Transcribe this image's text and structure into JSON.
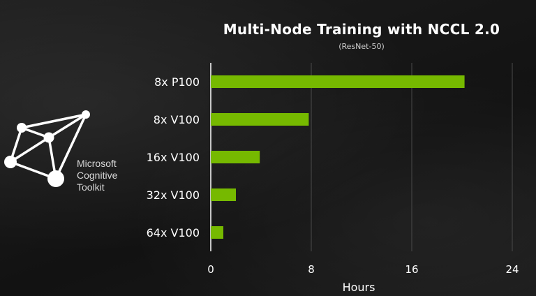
{
  "logo": {
    "name": "Microsoft Cognitive Toolkit",
    "lines": [
      "Microsoft",
      "Cognitive",
      "Toolkit"
    ]
  },
  "chart_data": {
    "type": "bar",
    "orientation": "horizontal",
    "title": "Multi-Node Training with NCCL 2.0",
    "subtitle": "(ResNet-50)",
    "xlabel": "Hours",
    "ylabel": "",
    "categories": [
      "8x P100",
      "8x V100",
      "16x V100",
      "32x V100",
      "64x V100"
    ],
    "values": [
      20.2,
      7.8,
      3.9,
      2.0,
      1.0
    ],
    "xlim": [
      0,
      24
    ],
    "xticks": [
      0,
      8,
      16,
      24
    ],
    "grid": true,
    "bar_color": "#76b900",
    "text_color": "#ffffff",
    "background": "#161616"
  }
}
